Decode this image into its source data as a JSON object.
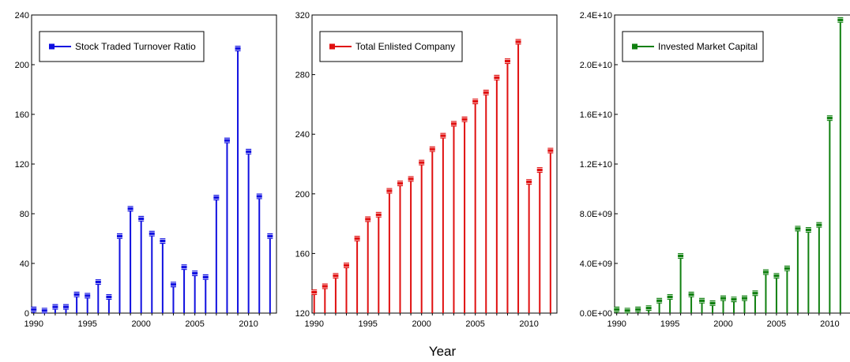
{
  "chart_data": [
    {
      "type": "stem",
      "color": "#1010e0",
      "legend": "Stock Traded Turnover Ratio",
      "legend_position": "top-left",
      "x": [
        1990,
        1991,
        1992,
        1993,
        1994,
        1995,
        1996,
        1997,
        1998,
        1999,
        2000,
        2001,
        2002,
        2003,
        2004,
        2005,
        2006,
        2007,
        2008,
        2009,
        2010,
        2011,
        2012
      ],
      "values": [
        3,
        2,
        5,
        5,
        15,
        14,
        25,
        13,
        62,
        84,
        76,
        64,
        58,
        23,
        37,
        32,
        29,
        93,
        139,
        213,
        130,
        94,
        62
      ],
      "ylim": [
        0,
        240
      ],
      "yticks": [
        0,
        40,
        80,
        120,
        160,
        200,
        240
      ],
      "ytick_labels": [
        "0",
        "40",
        "80",
        "120",
        "160",
        "200",
        "240"
      ],
      "xticks": [
        1990,
        1995,
        2000,
        2005,
        2010
      ],
      "xtick_labels": [
        "1990",
        "1995",
        "2000",
        "2005",
        "2010"
      ]
    },
    {
      "type": "stem",
      "color": "#e01010",
      "legend": "Total Enlisted Company",
      "legend_position": "top-left",
      "x": [
        1990,
        1991,
        1992,
        1993,
        1994,
        1995,
        1996,
        1997,
        1998,
        1999,
        2000,
        2001,
        2002,
        2003,
        2004,
        2005,
        2006,
        2007,
        2008,
        2009,
        2010,
        2011,
        2012
      ],
      "values": [
        134,
        138,
        145,
        152,
        170,
        183,
        186,
        202,
        207,
        210,
        221,
        230,
        239,
        247,
        250,
        262,
        268,
        278,
        289,
        302,
        208,
        216,
        229
      ],
      "ylim": [
        120,
        320
      ],
      "yticks": [
        120,
        160,
        200,
        240,
        280,
        320
      ],
      "ytick_labels": [
        "120",
        "160",
        "200",
        "240",
        "280",
        "320"
      ],
      "xticks": [
        1990,
        1995,
        2000,
        2005,
        2010
      ],
      "xtick_labels": [
        "1990",
        "1995",
        "2000",
        "2005",
        "2010"
      ]
    },
    {
      "type": "stem",
      "color": "#108010",
      "legend": "Invested Market Capital",
      "legend_position": "top-left",
      "x": [
        1990,
        1991,
        1992,
        1993,
        1994,
        1995,
        1996,
        1997,
        1998,
        1999,
        2000,
        2001,
        2002,
        2003,
        2004,
        2005,
        2006,
        2007,
        2008,
        2009,
        2010,
        2011
      ],
      "values": [
        300000000.0,
        200000000.0,
        300000000.0,
        400000000.0,
        1000000000.0,
        1300000000.0,
        4600000000.0,
        1500000000.0,
        1000000000.0,
        800000000.0,
        1200000000.0,
        1100000000.0,
        1200000000.0,
        1600000000.0,
        3300000000.0,
        3000000000.0,
        3600000000.0,
        6800000000.0,
        6700000000.0,
        7100000000.0,
        15700000000.0,
        23600000000.0
      ],
      "ylim": [
        0,
        24000000000
      ],
      "yticks": [
        0,
        4000000000,
        8000000000,
        12000000000,
        16000000000,
        20000000000,
        24000000000
      ],
      "ytick_labels": [
        "0.0E+00",
        "4.0E+09",
        "8.0E+09",
        "1.2E+10",
        "1.6E+10",
        "2.0E+10",
        "2.4E+10"
      ],
      "xticks": [
        1990,
        1995,
        2000,
        2005,
        2010
      ],
      "xtick_labels": [
        "1990",
        "1995",
        "2000",
        "2005",
        "2010"
      ]
    }
  ],
  "xlabel": "Year"
}
